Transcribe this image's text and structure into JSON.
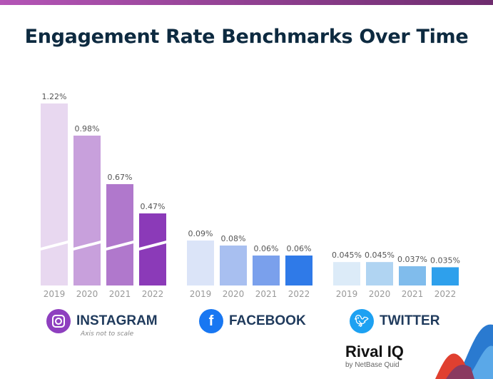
{
  "chart_data": {
    "type": "bar",
    "title": "Engagement Rate Benchmarks Over Time",
    "note": "Axis not to scale",
    "categories": [
      "2019",
      "2020",
      "2021",
      "2022"
    ],
    "groups": [
      {
        "name": "INSTAGRAM",
        "values": [
          1.22,
          0.98,
          0.67,
          0.47
        ],
        "labels": [
          "1.22%",
          "0.98%",
          "0.67%",
          "0.47%"
        ],
        "colors": [
          "#e8d8f0",
          "#c8a0dc",
          "#b078cc",
          "#8b3ab8"
        ],
        "icon_color": "#8e3fbf",
        "icon": "instagram-icon",
        "axis_break": true
      },
      {
        "name": "FACEBOOK",
        "values": [
          0.09,
          0.08,
          0.06,
          0.06
        ],
        "labels": [
          "0.09%",
          "0.08%",
          "0.06%",
          "0.06%"
        ],
        "colors": [
          "#dbe4f8",
          "#a8bff0",
          "#7aa0ec",
          "#2f7ae8"
        ],
        "icon_color": "#1877f2",
        "icon": "facebook-icon"
      },
      {
        "name": "TWITTER",
        "values": [
          0.045,
          0.045,
          0.037,
          0.035
        ],
        "labels": [
          "0.045%",
          "0.045%",
          "0.037%",
          "0.035%"
        ],
        "colors": [
          "#dcebf8",
          "#b0d4f2",
          "#80bcec",
          "#2ea0ec"
        ],
        "icon_color": "#1da1f2",
        "icon": "twitter-icon"
      }
    ]
  },
  "logo": {
    "main": "Rival IQ",
    "sub": "by NetBase Quid"
  }
}
